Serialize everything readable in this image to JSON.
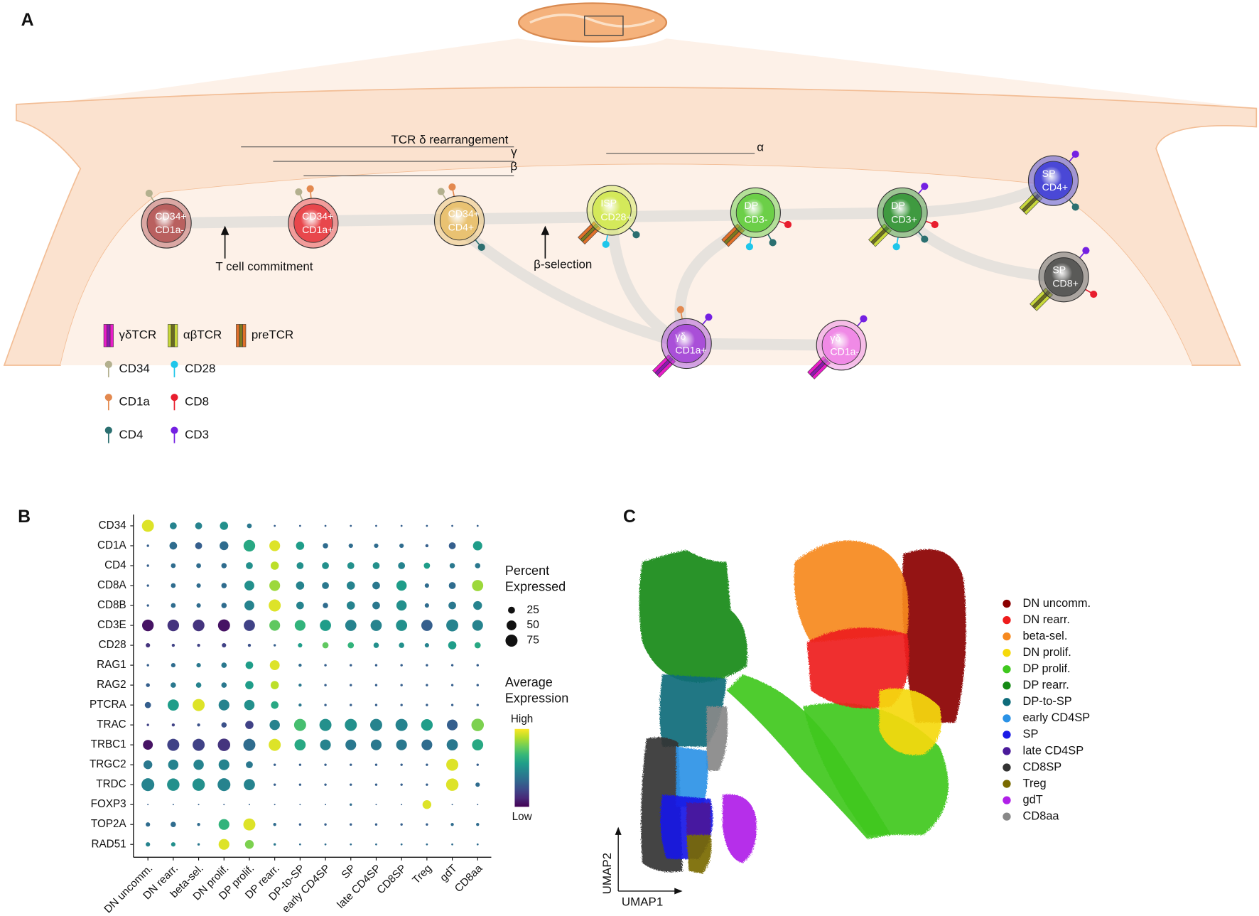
{
  "panel_a": {
    "label": "A",
    "annotations": {
      "tcr_delta": "TCR δ rearrangement",
      "gamma": "γ",
      "beta": "β",
      "alpha": "α",
      "commitment": "T cell commitment",
      "selection": "β-selection"
    },
    "cells": [
      {
        "lines": [
          "CD34+",
          "CD1a-"
        ],
        "color": "#b9605f"
      },
      {
        "lines": [
          "CD34+",
          "CD1a+"
        ],
        "color": "#e8474c"
      },
      {
        "lines": [
          "CD34+",
          "CD4+"
        ],
        "color": "#e9c272"
      },
      {
        "lines": [
          "ISP",
          "CD28+"
        ],
        "color": "#d4e95a"
      },
      {
        "lines": [
          "DP",
          "CD3-"
        ],
        "color": "#6ccf48"
      },
      {
        "lines": [
          "DP",
          "CD3+"
        ],
        "color": "#3f9a40"
      },
      {
        "lines": [
          "SP",
          "CD4+"
        ],
        "color": "#4a48d6"
      },
      {
        "lines": [
          "SP",
          "CD8+"
        ],
        "color": "#5a5a58"
      },
      {
        "lines": [
          "γδ",
          "CD1a+"
        ],
        "color": "#a94fd8"
      },
      {
        "lines": [
          "γδ",
          "CD1a-"
        ],
        "color": "#f08ae6"
      }
    ],
    "legend": {
      "receptors": [
        "γδTCR",
        "αβTCR",
        "preTCR"
      ],
      "markers": [
        {
          "name": "CD34",
          "color": "#b3b08e"
        },
        {
          "name": "CD28",
          "color": "#1fc6ea"
        },
        {
          "name": "CD1a",
          "color": "#e3894f"
        },
        {
          "name": "CD8",
          "color": "#e81e2e"
        },
        {
          "name": "CD4",
          "color": "#2b6f70"
        },
        {
          "name": "CD3",
          "color": "#7420e2"
        }
      ]
    }
  },
  "chart_data": [
    {
      "type": "dot",
      "label": "B",
      "colormap": "viridis",
      "genes": [
        "CD34",
        "CD1A",
        "CD4",
        "CD8A",
        "CD8B",
        "CD3E",
        "CD28",
        "RAG1",
        "RAG2",
        "PTCRA",
        "TRAC",
        "TRBC1",
        "TRGC2",
        "TRDC",
        "FOXP3",
        "TOP2A",
        "RAD51"
      ],
      "categories": [
        "DN uncomm.",
        "DN rearr.",
        "beta-sel.",
        "DN prolif.",
        "DP prolif.",
        "DP rearr.",
        "DP-to-SP",
        "early CD4SP",
        "SP",
        "late CD4SP",
        "CD8SP",
        "Treg",
        "gdT",
        "CD8aa"
      ],
      "percent": [
        [
          75,
          25,
          25,
          35,
          12,
          2,
          2,
          2,
          2,
          2,
          2,
          2,
          2,
          2
        ],
        [
          3,
          30,
          25,
          40,
          70,
          60,
          35,
          15,
          10,
          10,
          10,
          5,
          25,
          45
        ],
        [
          3,
          12,
          12,
          15,
          25,
          35,
          25,
          25,
          25,
          25,
          25,
          20,
          15,
          15
        ],
        [
          3,
          12,
          10,
          15,
          50,
          60,
          35,
          25,
          35,
          30,
          55,
          10,
          25,
          65
        ],
        [
          3,
          12,
          10,
          15,
          50,
          75,
          30,
          15,
          35,
          30,
          55,
          10,
          30,
          40
        ],
        [
          70,
          70,
          70,
          75,
          65,
          60,
          60,
          65,
          65,
          65,
          65,
          65,
          75,
          60
        ],
        [
          10,
          5,
          5,
          10,
          5,
          3,
          10,
          20,
          20,
          15,
          15,
          10,
          35,
          20
        ],
        [
          3,
          10,
          10,
          15,
          30,
          50,
          5,
          3,
          3,
          3,
          3,
          3,
          3,
          3
        ],
        [
          8,
          15,
          15,
          15,
          35,
          35,
          5,
          3,
          3,
          3,
          3,
          3,
          3,
          3
        ],
        [
          20,
          65,
          75,
          60,
          55,
          30,
          5,
          3,
          3,
          3,
          3,
          3,
          3,
          3
        ],
        [
          3,
          5,
          5,
          15,
          35,
          55,
          75,
          75,
          75,
          75,
          75,
          70,
          60,
          80
        ],
        [
          50,
          75,
          75,
          80,
          75,
          75,
          65,
          60,
          60,
          60,
          60,
          60,
          65,
          65
        ],
        [
          40,
          55,
          55,
          60,
          25,
          3,
          3,
          3,
          3,
          3,
          3,
          3,
          75,
          3
        ],
        [
          85,
          80,
          80,
          85,
          65,
          3,
          3,
          3,
          3,
          3,
          3,
          3,
          80,
          10
        ],
        [
          1,
          1,
          1,
          1,
          1,
          1,
          1,
          1,
          3,
          1,
          1,
          40,
          1,
          1
        ],
        [
          10,
          15,
          5,
          60,
          75,
          5,
          3,
          3,
          3,
          3,
          3,
          3,
          5,
          5
        ],
        [
          10,
          10,
          3,
          60,
          40,
          3,
          2,
          2,
          2,
          2,
          2,
          2,
          2,
          2
        ]
      ],
      "expression": [
        [
          0.95,
          0.45,
          0.45,
          0.5,
          0.4,
          0.3,
          0.3,
          0.3,
          0.3,
          0.3,
          0.3,
          0.3,
          0.3,
          0.3
        ],
        [
          0.3,
          0.35,
          0.3,
          0.35,
          0.6,
          0.95,
          0.55,
          0.35,
          0.35,
          0.35,
          0.35,
          0.3,
          0.3,
          0.55
        ],
        [
          0.3,
          0.35,
          0.35,
          0.35,
          0.5,
          0.9,
          0.5,
          0.5,
          0.5,
          0.5,
          0.45,
          0.55,
          0.4,
          0.4
        ],
        [
          0.3,
          0.35,
          0.35,
          0.35,
          0.5,
          0.85,
          0.45,
          0.4,
          0.45,
          0.4,
          0.55,
          0.35,
          0.35,
          0.85
        ],
        [
          0.3,
          0.35,
          0.35,
          0.35,
          0.45,
          0.95,
          0.45,
          0.35,
          0.45,
          0.4,
          0.5,
          0.35,
          0.4,
          0.45
        ],
        [
          0.05,
          0.15,
          0.15,
          0.05,
          0.2,
          0.75,
          0.65,
          0.55,
          0.45,
          0.45,
          0.5,
          0.3,
          0.45,
          0.45
        ],
        [
          0.15,
          0.2,
          0.2,
          0.2,
          0.25,
          0.3,
          0.55,
          0.75,
          0.65,
          0.5,
          0.5,
          0.45,
          0.55,
          0.6
        ],
        [
          0.3,
          0.35,
          0.4,
          0.4,
          0.55,
          0.95,
          0.35,
          0.3,
          0.3,
          0.3,
          0.3,
          0.3,
          0.3,
          0.3
        ],
        [
          0.3,
          0.4,
          0.45,
          0.4,
          0.55,
          0.9,
          0.4,
          0.3,
          0.3,
          0.3,
          0.3,
          0.3,
          0.3,
          0.3
        ],
        [
          0.3,
          0.55,
          0.95,
          0.45,
          0.5,
          0.6,
          0.4,
          0.3,
          0.3,
          0.3,
          0.3,
          0.3,
          0.3,
          0.3
        ],
        [
          0.2,
          0.2,
          0.25,
          0.25,
          0.2,
          0.45,
          0.7,
          0.5,
          0.5,
          0.45,
          0.45,
          0.55,
          0.3,
          0.8
        ],
        [
          0.05,
          0.2,
          0.2,
          0.15,
          0.35,
          0.95,
          0.6,
          0.45,
          0.4,
          0.4,
          0.4,
          0.35,
          0.4,
          0.6
        ],
        [
          0.4,
          0.45,
          0.45,
          0.45,
          0.4,
          0.3,
          0.3,
          0.3,
          0.3,
          0.3,
          0.3,
          0.3,
          0.95,
          0.3
        ],
        [
          0.45,
          0.5,
          0.5,
          0.45,
          0.45,
          0.3,
          0.3,
          0.3,
          0.3,
          0.3,
          0.3,
          0.3,
          0.95,
          0.35
        ],
        [
          0.3,
          0.3,
          0.3,
          0.3,
          0.3,
          0.3,
          0.3,
          0.3,
          0.35,
          0.3,
          0.3,
          0.95,
          0.3,
          0.3
        ],
        [
          0.35,
          0.35,
          0.35,
          0.65,
          0.95,
          0.35,
          0.3,
          0.3,
          0.3,
          0.3,
          0.3,
          0.3,
          0.35,
          0.35
        ],
        [
          0.45,
          0.5,
          0.4,
          0.95,
          0.8,
          0.4,
          0.35,
          0.35,
          0.35,
          0.35,
          0.35,
          0.35,
          0.35,
          0.35
        ]
      ],
      "size_legend": {
        "title": [
          "Percent",
          "Expressed"
        ],
        "values": [
          25,
          50,
          75
        ]
      },
      "color_legend": {
        "title": [
          "Average",
          "Expression"
        ],
        "high": "High",
        "low": "Low"
      }
    },
    {
      "type": "scatter",
      "label": "C",
      "xlabel": "UMAP1",
      "ylabel": "UMAP2",
      "series": [
        {
          "name": "DN uncomm.",
          "color": "#8b0000"
        },
        {
          "name": "DN rearr.",
          "color": "#ee1c1c"
        },
        {
          "name": "beta-sel.",
          "color": "#f6891f"
        },
        {
          "name": "DN prolif.",
          "color": "#f5d90a"
        },
        {
          "name": "DP prolif.",
          "color": "#3fc81e"
        },
        {
          "name": "DP rearr.",
          "color": "#158a15"
        },
        {
          "name": "DP-to-SP",
          "color": "#0e6b7a"
        },
        {
          "name": "early CD4SP",
          "color": "#2a92e6"
        },
        {
          "name": "SP",
          "color": "#1a1ae6"
        },
        {
          "name": "late CD4SP",
          "color": "#4a1a9a"
        },
        {
          "name": "CD8SP",
          "color": "#333333"
        },
        {
          "name": "Treg",
          "color": "#7a6a00"
        },
        {
          "name": "gdT",
          "color": "#b020e8"
        },
        {
          "name": "CD8aa",
          "color": "#888888"
        }
      ]
    }
  ]
}
